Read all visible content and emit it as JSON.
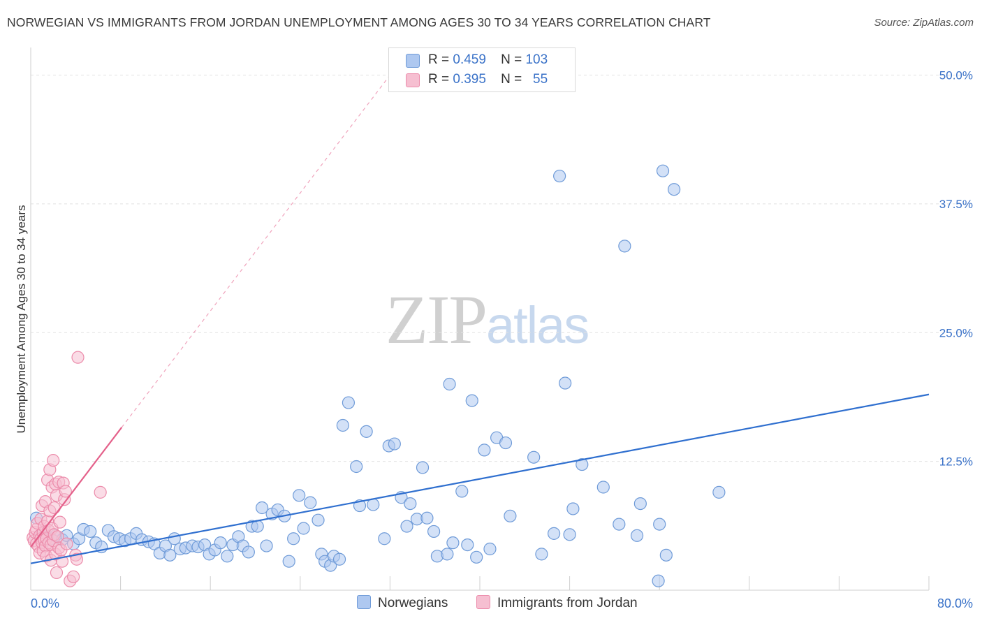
{
  "header": {
    "title": "NORWEGIAN VS IMMIGRANTS FROM JORDAN UNEMPLOYMENT AMONG AGES 30 TO 34 YEARS CORRELATION CHART",
    "source": "Source: ZipAtlas.com"
  },
  "watermark": {
    "zip": "ZIP",
    "atlas": "atlas"
  },
  "legend": {
    "r_label": "R =",
    "n_label": "N =",
    "rows": [
      {
        "r": "0.459",
        "n": "103",
        "color": "#aec8f0"
      },
      {
        "r": "0.395",
        "n": "55",
        "color": "#f6bfd1"
      }
    ]
  },
  "colors": {
    "blue_fill": "#aec8f0",
    "blue_stroke": "#6f9bd8",
    "blue_line": "#2f6fcf",
    "pink_fill": "#f6bfd1",
    "pink_stroke": "#ec8cab",
    "pink_line": "#e4608a",
    "tick_text": "#3a72c8",
    "grid": "#e2e2e2"
  },
  "chart_data": {
    "type": "scatter",
    "title": "NORWEGIAN VS IMMIGRANTS FROM JORDAN UNEMPLOYMENT AMONG AGES 30 TO 34 YEARS CORRELATION CHART",
    "xlabel": "",
    "ylabel": "Unemployment Among Ages 30 to 34 years",
    "xlim": [
      0,
      80
    ],
    "ylim": [
      0,
      52
    ],
    "x_tick_labels": [
      "0.0%",
      "80.0%"
    ],
    "y_ticks": [
      12.5,
      25.0,
      37.5,
      50.0
    ],
    "y_tick_labels": [
      "12.5%",
      "25.0%",
      "37.5%",
      "50.0%"
    ],
    "grid": true,
    "series": [
      {
        "name": "Norwegians",
        "r": 0.459,
        "n": 103,
        "trend": {
          "x0": 0,
          "y0": 2.6,
          "x1": 80,
          "y1": 19.0
        },
        "points": [
          [
            0.5,
            7.0
          ],
          [
            0.9,
            5.3
          ],
          [
            1.1,
            5.0
          ],
          [
            1.3,
            4.8
          ],
          [
            1.5,
            5.2
          ],
          [
            1.8,
            5.0
          ],
          [
            2.2,
            5.3
          ],
          [
            2.8,
            4.9
          ],
          [
            3.2,
            5.3
          ],
          [
            3.8,
            4.5
          ],
          [
            4.3,
            5.0
          ],
          [
            4.7,
            5.9
          ],
          [
            5.3,
            5.7
          ],
          [
            5.8,
            4.6
          ],
          [
            6.3,
            4.2
          ],
          [
            6.9,
            5.8
          ],
          [
            7.4,
            5.2
          ],
          [
            7.9,
            5.0
          ],
          [
            8.4,
            4.8
          ],
          [
            8.9,
            5.0
          ],
          [
            9.4,
            5.5
          ],
          [
            9.9,
            4.9
          ],
          [
            10.5,
            4.7
          ],
          [
            11.0,
            4.5
          ],
          [
            11.5,
            3.6
          ],
          [
            12.0,
            4.3
          ],
          [
            12.4,
            3.4
          ],
          [
            12.8,
            5.0
          ],
          [
            13.3,
            4.0
          ],
          [
            13.8,
            4.1
          ],
          [
            14.4,
            4.3
          ],
          [
            14.9,
            4.2
          ],
          [
            15.5,
            4.4
          ],
          [
            15.9,
            3.5
          ],
          [
            16.4,
            3.9
          ],
          [
            16.9,
            4.6
          ],
          [
            17.5,
            3.3
          ],
          [
            18.0,
            4.4
          ],
          [
            18.5,
            5.2
          ],
          [
            18.9,
            4.3
          ],
          [
            19.4,
            3.7
          ],
          [
            19.7,
            6.2
          ],
          [
            20.2,
            6.2
          ],
          [
            20.6,
            8.0
          ],
          [
            21.0,
            4.3
          ],
          [
            21.5,
            7.4
          ],
          [
            22.0,
            7.8
          ],
          [
            22.6,
            7.2
          ],
          [
            23.0,
            2.8
          ],
          [
            23.4,
            5.0
          ],
          [
            23.9,
            9.2
          ],
          [
            24.3,
            6.0
          ],
          [
            24.9,
            8.5
          ],
          [
            25.6,
            6.8
          ],
          [
            25.9,
            3.5
          ],
          [
            26.2,
            2.8
          ],
          [
            26.7,
            2.4
          ],
          [
            27.0,
            3.3
          ],
          [
            27.5,
            3.0
          ],
          [
            27.8,
            16.0
          ],
          [
            28.3,
            18.2
          ],
          [
            29.0,
            12.0
          ],
          [
            29.3,
            8.2
          ],
          [
            29.9,
            15.4
          ],
          [
            30.5,
            8.3
          ],
          [
            31.5,
            5.0
          ],
          [
            31.9,
            14.0
          ],
          [
            32.4,
            14.2
          ],
          [
            33.0,
            9.0
          ],
          [
            33.5,
            6.2
          ],
          [
            33.8,
            8.4
          ],
          [
            34.4,
            6.9
          ],
          [
            34.9,
            11.9
          ],
          [
            35.3,
            7.0
          ],
          [
            35.9,
            5.7
          ],
          [
            36.2,
            3.3
          ],
          [
            37.1,
            3.5
          ],
          [
            37.3,
            20.0
          ],
          [
            37.6,
            4.6
          ],
          [
            38.4,
            9.6
          ],
          [
            38.9,
            4.4
          ],
          [
            39.3,
            18.4
          ],
          [
            39.7,
            3.2
          ],
          [
            40.4,
            13.6
          ],
          [
            40.9,
            4.0
          ],
          [
            41.5,
            14.8
          ],
          [
            42.3,
            14.3
          ],
          [
            42.7,
            7.2
          ],
          [
            44.8,
            12.9
          ],
          [
            45.5,
            3.5
          ],
          [
            46.6,
            5.5
          ],
          [
            47.1,
            40.2
          ],
          [
            47.6,
            20.1
          ],
          [
            48.0,
            5.4
          ],
          [
            48.3,
            7.9
          ],
          [
            49.1,
            12.2
          ],
          [
            51.0,
            10.0
          ],
          [
            52.4,
            6.4
          ],
          [
            52.9,
            33.4
          ],
          [
            54.0,
            5.3
          ],
          [
            54.3,
            8.4
          ],
          [
            56.0,
            6.4
          ],
          [
            56.3,
            40.7
          ],
          [
            56.6,
            3.4
          ],
          [
            57.3,
            38.9
          ],
          [
            61.3,
            9.5
          ],
          [
            55.9,
            0.9
          ]
        ]
      },
      {
        "name": "Immigrants from Jordan",
        "r": 0.395,
        "n": 55,
        "trend": {
          "x0": 0,
          "y0": 4.2,
          "x1": 8.1,
          "y1": 15.8
        },
        "trend_extended": {
          "x0": 8.1,
          "y0": 15.8,
          "x1": 32.0,
          "y1": 50.0
        },
        "points": [
          [
            0.2,
            5.1
          ],
          [
            0.3,
            4.8
          ],
          [
            0.4,
            5.6
          ],
          [
            0.5,
            4.5
          ],
          [
            0.5,
            5.9
          ],
          [
            0.6,
            6.5
          ],
          [
            0.7,
            4.2
          ],
          [
            0.8,
            5.3
          ],
          [
            0.8,
            3.6
          ],
          [
            0.9,
            5.0
          ],
          [
            0.9,
            6.9
          ],
          [
            1.0,
            4.6
          ],
          [
            1.0,
            8.2
          ],
          [
            1.1,
            3.8
          ],
          [
            1.1,
            5.6
          ],
          [
            1.2,
            4.9
          ],
          [
            1.2,
            6.2
          ],
          [
            1.3,
            8.6
          ],
          [
            1.3,
            4.3
          ],
          [
            1.4,
            5.0
          ],
          [
            1.4,
            3.3
          ],
          [
            1.5,
            6.7
          ],
          [
            1.5,
            10.7
          ],
          [
            1.6,
            4.6
          ],
          [
            1.6,
            5.8
          ],
          [
            1.7,
            7.7
          ],
          [
            1.7,
            11.7
          ],
          [
            1.8,
            4.4
          ],
          [
            1.8,
            2.9
          ],
          [
            1.9,
            10.0
          ],
          [
            1.9,
            6.0
          ],
          [
            2.0,
            12.6
          ],
          [
            2.0,
            4.8
          ],
          [
            2.1,
            5.4
          ],
          [
            2.1,
            8.0
          ],
          [
            2.2,
            10.3
          ],
          [
            2.2,
            3.5
          ],
          [
            2.3,
            9.2
          ],
          [
            2.3,
            1.7
          ],
          [
            2.4,
            5.2
          ],
          [
            2.5,
            4.1
          ],
          [
            2.5,
            10.5
          ],
          [
            2.6,
            6.6
          ],
          [
            2.7,
            3.9
          ],
          [
            2.8,
            2.8
          ],
          [
            2.9,
            10.4
          ],
          [
            3.0,
            8.8
          ],
          [
            3.1,
            9.6
          ],
          [
            3.2,
            4.5
          ],
          [
            3.5,
            0.9
          ],
          [
            3.8,
            1.3
          ],
          [
            4.0,
            3.4
          ],
          [
            4.1,
            3.0
          ],
          [
            4.2,
            22.6
          ],
          [
            6.2,
            9.5
          ]
        ]
      }
    ]
  },
  "bottom_legend": [
    {
      "label": "Norwegians",
      "color": "#aec8f0"
    },
    {
      "label": "Immigrants from Jordan",
      "color": "#f6bfd1"
    }
  ]
}
